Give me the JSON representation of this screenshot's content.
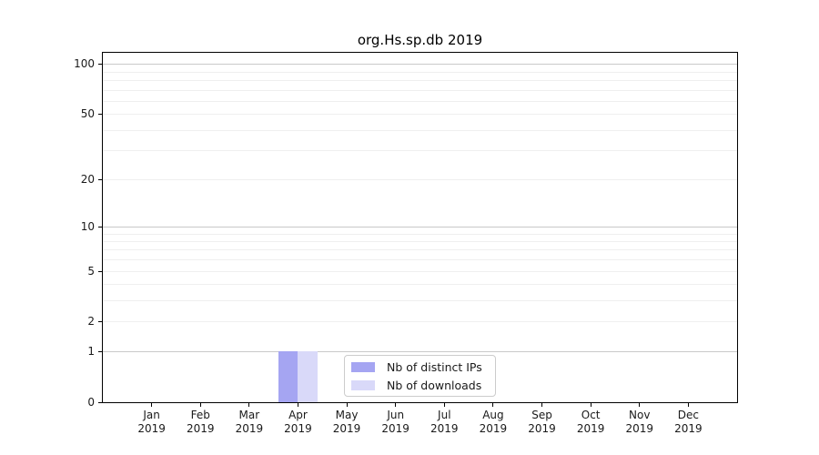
{
  "chart_data": {
    "type": "bar",
    "title": "org.Hs.sp.db 2019",
    "categories": [
      "Jan",
      "Feb",
      "Mar",
      "Apr",
      "May",
      "Jun",
      "Jul",
      "Aug",
      "Sep",
      "Oct",
      "Nov",
      "Dec"
    ],
    "year_label": "2019",
    "series": [
      {
        "name": "Nb of distinct IPs",
        "color": "#a5a5f2",
        "values": [
          0,
          0,
          0,
          1,
          0,
          0,
          0,
          0,
          0,
          0,
          0,
          0
        ]
      },
      {
        "name": "Nb of downloads",
        "color": "#d9d9f9",
        "values": [
          0,
          0,
          0,
          1,
          0,
          0,
          0,
          0,
          0,
          0,
          0,
          0
        ]
      }
    ],
    "yscale": "log1p",
    "ylim": [
      0,
      118
    ],
    "yticks": [
      0,
      1,
      2,
      5,
      10,
      20,
      50,
      100
    ],
    "gridlines_major": [
      1,
      10,
      100
    ],
    "gridlines_minor": [
      2,
      3,
      4,
      5,
      6,
      7,
      8,
      9,
      20,
      30,
      40,
      50,
      60,
      70,
      80,
      90
    ],
    "legend_position": "lower center",
    "grid": true,
    "colors": {
      "axis": "#000000",
      "grid_major": "#c9c9c9",
      "grid_minor": "#efefef",
      "text": "#1a1a1a",
      "legend_border": "#cccccc"
    }
  }
}
